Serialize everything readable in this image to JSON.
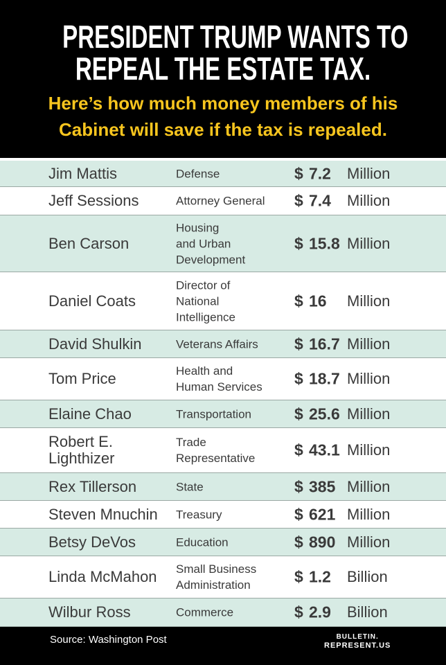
{
  "header": {
    "title_lines": [
      "PRESIDENT TRUMP WANTS TO",
      "REPEAL THE ESTATE TAX."
    ],
    "subtitle_lines": [
      "Here’s how much money members of his",
      "Cabinet will save if the tax is repealed."
    ]
  },
  "table": {
    "rows": [
      [
        "Jim Mattis",
        "Defense",
        "$",
        "7.2",
        "Million"
      ],
      [
        "Jeff Sessions",
        "Attorney General",
        "$",
        "7.4",
        "Million"
      ],
      [
        "Ben Carson",
        "Housing\nand Urban\nDevelopment",
        "$",
        "15.8",
        "Million"
      ],
      [
        "Daniel Coats",
        "Director of\nNational\nIntelligence",
        "$",
        "16",
        "Million"
      ],
      [
        "David Shulkin",
        "Veterans Affairs",
        "$",
        "16.7",
        "Million"
      ],
      [
        "Tom Price",
        "Health and\nHuman Services",
        "$",
        "18.7",
        "Million"
      ],
      [
        "Elaine Chao",
        "Transportation",
        "$",
        "25.6",
        "Million"
      ],
      [
        "Robert E.\nLighthizer",
        "Trade\nRepresentative",
        "$",
        "43.1",
        "Million"
      ],
      [
        "Rex Tillerson",
        "State",
        "$",
        "385",
        "Million"
      ],
      [
        "Steven Mnuchin",
        "Treasury",
        "$",
        "621",
        "Million"
      ],
      [
        "Betsy DeVos",
        "Education",
        "$",
        "890",
        "Million"
      ],
      [
        "Linda McMahon",
        "Small Business\nAdministration",
        "$",
        "1.2",
        "Billion"
      ],
      [
        "Wilbur Ross",
        "Commerce",
        "$",
        "2.9",
        "Billion"
      ]
    ]
  },
  "footer": {
    "source": "Source: Washington Post",
    "logo_lines": [
      "BULLETIN.",
      "REPRESENT.US"
    ]
  }
}
